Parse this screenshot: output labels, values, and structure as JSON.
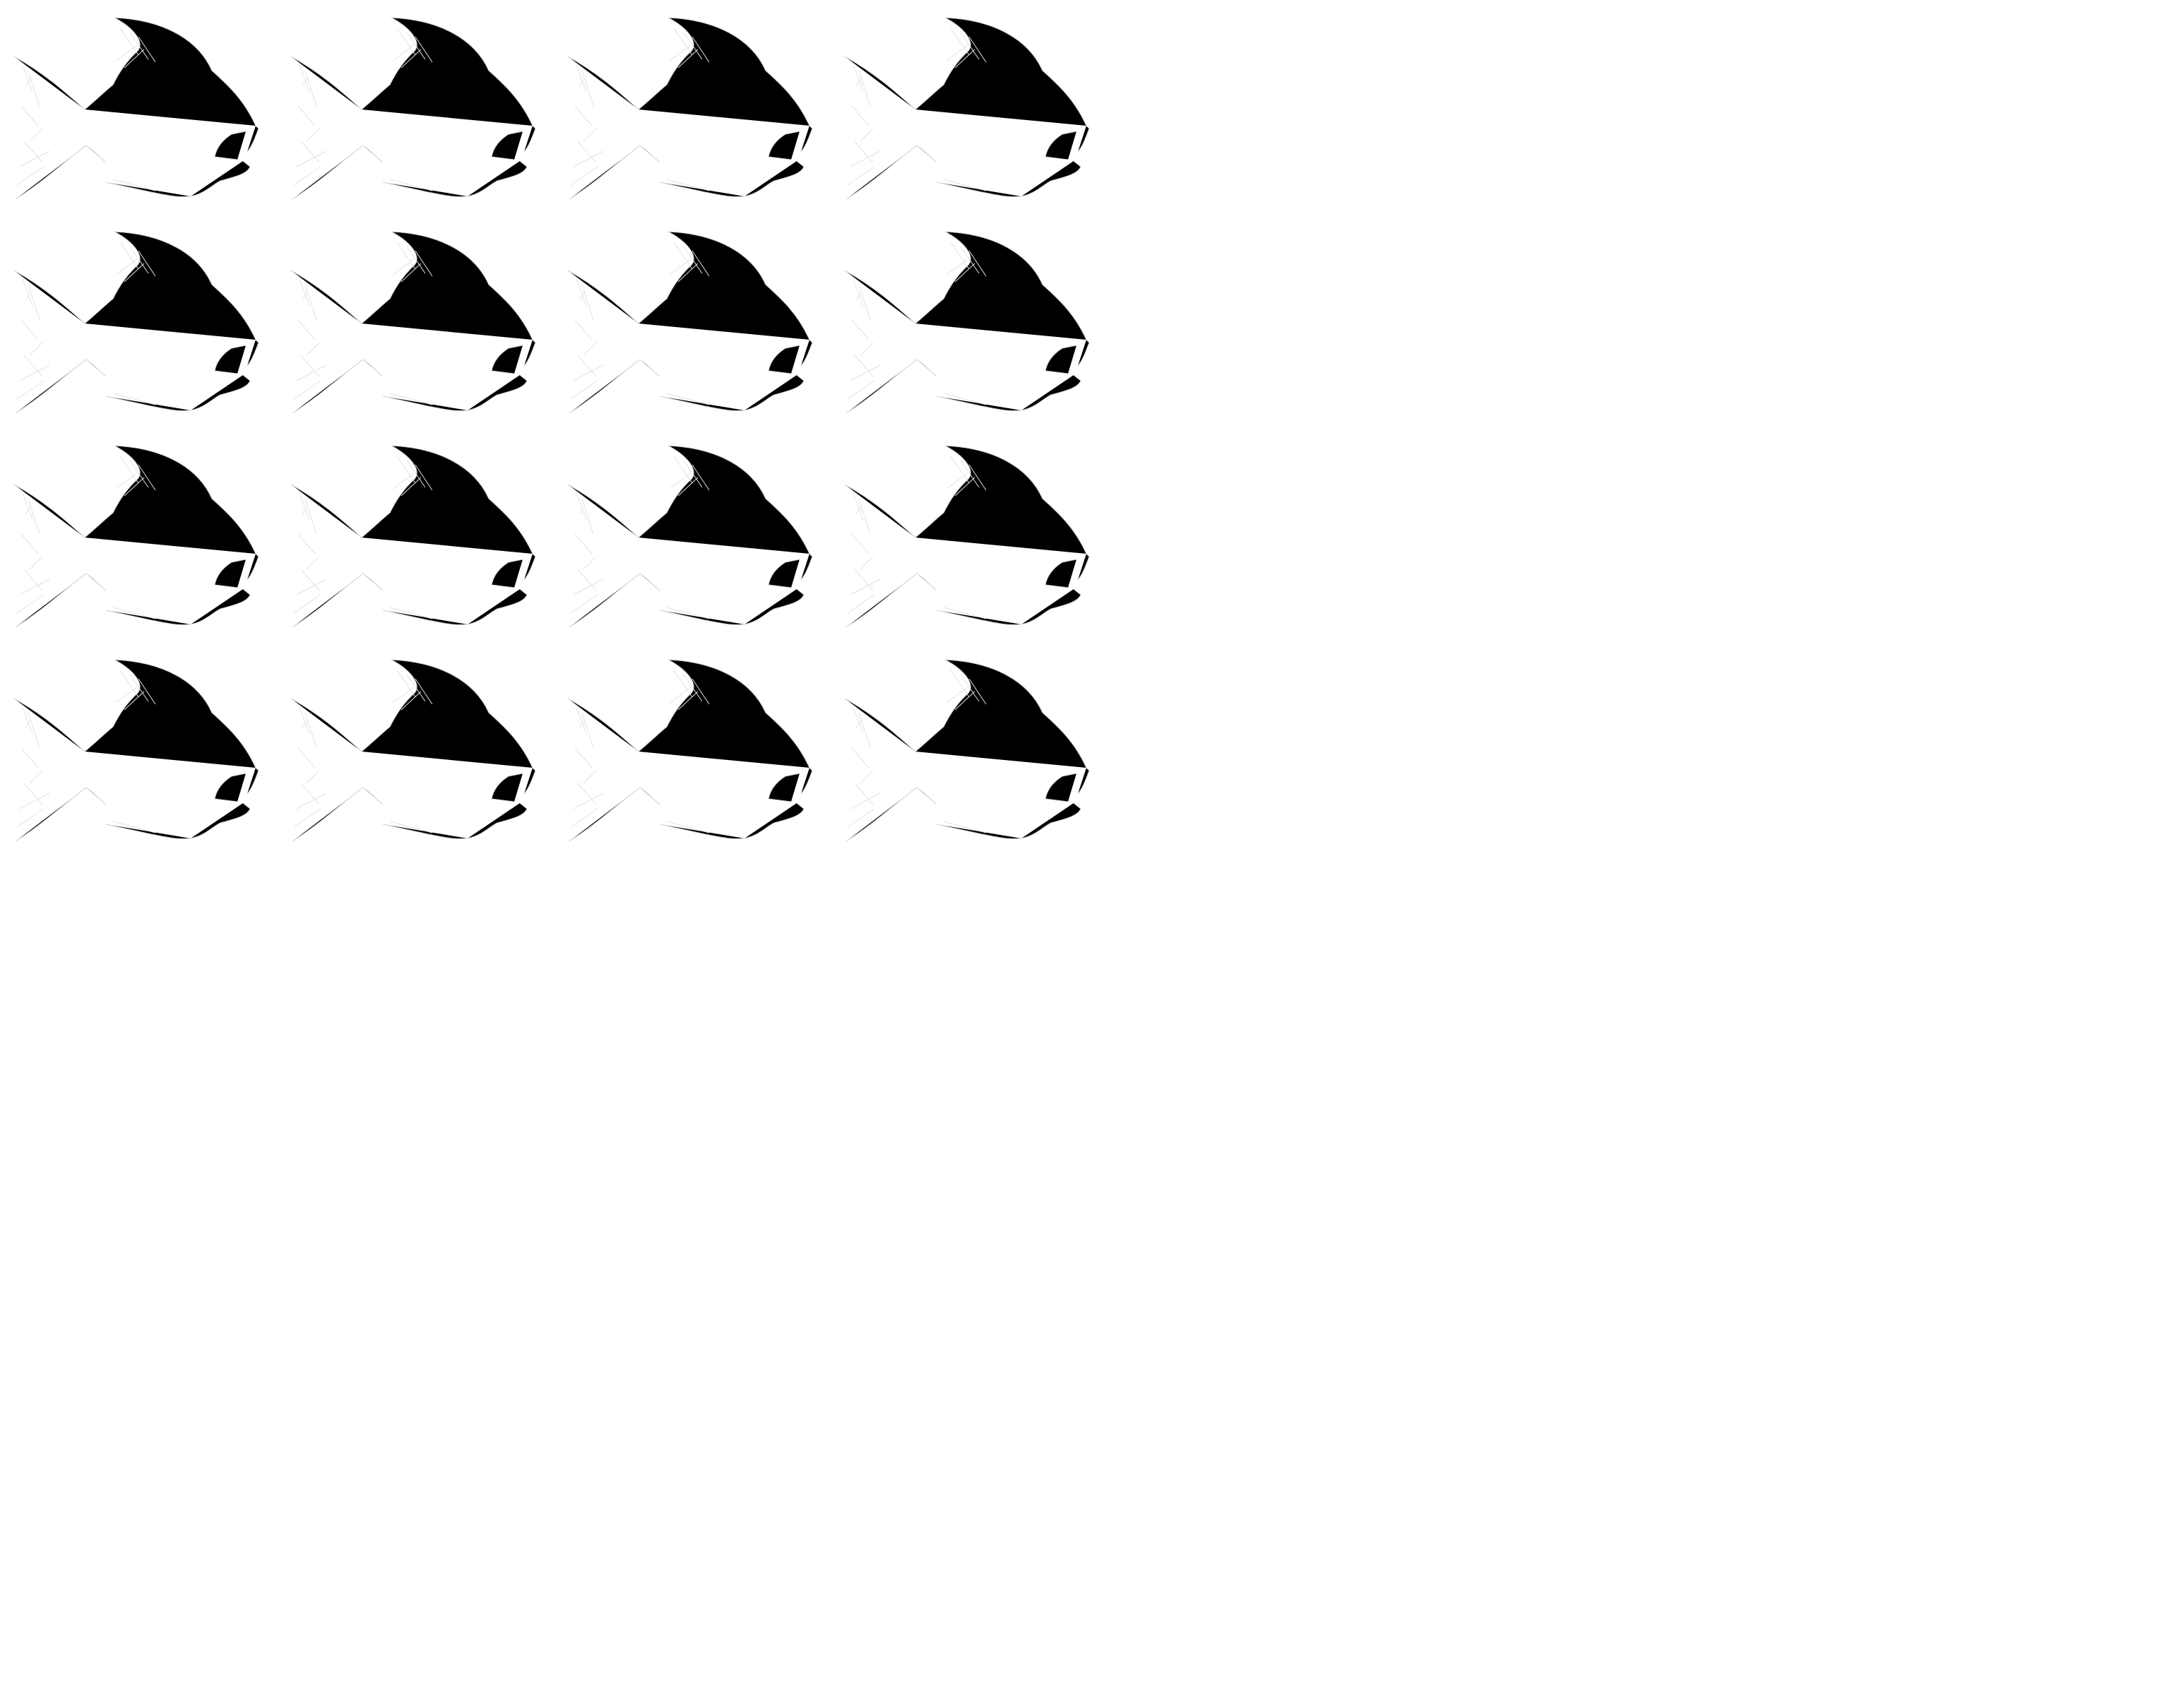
{
  "page": {
    "background": "#ffffff",
    "stroke_color": "#d0d0d0",
    "hatch_color": "#e2e2e2"
  },
  "sheet": {
    "subject": "fish-outline-icon",
    "rows": 4,
    "columns": 4,
    "count": 16
  }
}
